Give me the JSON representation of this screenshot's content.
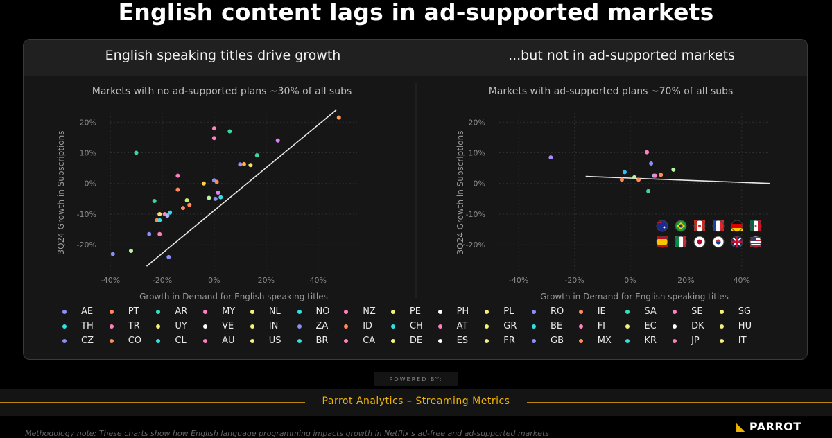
{
  "title": "English content lags in ad-supported markets",
  "panels": {
    "left_title": "English speaking titles drive growth",
    "right_title": "...but not in ad-supported markets"
  },
  "chart_data": [
    {
      "type": "scatter",
      "title": "Markets with no ad-supported plans ~30% of all subs",
      "xlabel": "Growth in Demand for English speaking titles",
      "ylabel": "3Q24 Growth in Subscriptions",
      "xlim": [
        -40,
        55
      ],
      "ylim": [
        -29,
        23
      ],
      "xticks": [
        "-40%",
        "-20%",
        "0%",
        "20%",
        "40%"
      ],
      "xtick_values": [
        -40,
        -20,
        0,
        20,
        40
      ],
      "yticks": [
        "20%",
        "10%",
        "0%",
        "-10%",
        "-20%"
      ],
      "ytick_values": [
        20,
        10,
        0,
        -10,
        -20
      ],
      "trendline": [
        [
          -26,
          -27
        ],
        [
          47,
          24
        ]
      ],
      "points": [
        {
          "x": -39,
          "y": -23,
          "color": "#8b8ff5"
        },
        {
          "x": -32,
          "y": -22,
          "color": "#b8f5a0"
        },
        {
          "x": -30,
          "y": 10,
          "color": "#3fd6a0"
        },
        {
          "x": -25,
          "y": -16.5,
          "color": "#8b8ff5"
        },
        {
          "x": -23,
          "y": -5.7,
          "color": "#3fd6a0"
        },
        {
          "x": -22,
          "y": -12,
          "color": "#ff8a5c"
        },
        {
          "x": -21,
          "y": -16.5,
          "color": "#ff7fbf"
        },
        {
          "x": -21,
          "y": -10,
          "color": "#ffe066"
        },
        {
          "x": -21,
          "y": -12,
          "color": "#33e0e0"
        },
        {
          "x": -19,
          "y": -10,
          "color": "#ff7fbf"
        },
        {
          "x": -18,
          "y": -10.5,
          "color": "#b0b0ff"
        },
        {
          "x": -17.5,
          "y": -24,
          "color": "#8b8ff5"
        },
        {
          "x": -17,
          "y": -9.5,
          "color": "#33e0e0"
        },
        {
          "x": -14,
          "y": 2.5,
          "color": "#ff7fbf"
        },
        {
          "x": -14,
          "y": -2,
          "color": "#ff8a5c"
        },
        {
          "x": -12,
          "y": -8,
          "color": "#ff8a5c"
        },
        {
          "x": -10.5,
          "y": -5.5,
          "color": "#c8f06a"
        },
        {
          "x": -9.5,
          "y": -7,
          "color": "#ff8a5c"
        },
        {
          "x": -4,
          "y": 0,
          "color": "#ffd24a"
        },
        {
          "x": -2,
          "y": -4.7,
          "color": "#b8f5a0"
        },
        {
          "x": 0,
          "y": 1,
          "color": "#8b8ff5"
        },
        {
          "x": 0,
          "y": 18,
          "color": "#ff7fbf"
        },
        {
          "x": 0,
          "y": 14.8,
          "color": "#ff7fbf"
        },
        {
          "x": 0.5,
          "y": -5,
          "color": "#8b8ff5"
        },
        {
          "x": 1,
          "y": 0.5,
          "color": "#ff8a5c"
        },
        {
          "x": 1.5,
          "y": -3,
          "color": "#e07fff"
        },
        {
          "x": 2.5,
          "y": -4.5,
          "color": "#33e0e0"
        },
        {
          "x": 6,
          "y": 17,
          "color": "#3fd6a0"
        },
        {
          "x": 10,
          "y": 6.2,
          "color": "#a88bff"
        },
        {
          "x": 11.5,
          "y": 6.3,
          "color": "#ffb347"
        },
        {
          "x": 14,
          "y": 6,
          "color": "#ffe066"
        },
        {
          "x": 16.5,
          "y": 9.2,
          "color": "#3fd6a0"
        },
        {
          "x": 24.5,
          "y": 14,
          "color": "#e07fff"
        },
        {
          "x": 48,
          "y": 21.5,
          "color": "#ff9a50"
        }
      ]
    },
    {
      "type": "scatter",
      "title": "Markets with ad-supported plans ~70% of all subs",
      "xlabel": "Growth in Demand for English speaking titles",
      "ylabel": "3Q24 Growth in Subscriptions",
      "xlim": [
        -47,
        50
      ],
      "ylim": [
        -29,
        23
      ],
      "xticks": [
        "-40%",
        "-20%",
        "0%",
        "20%",
        "40%"
      ],
      "xtick_values": [
        -40,
        -20,
        0,
        20,
        40
      ],
      "yticks": [
        "20%",
        "10%",
        "0%",
        "-10%",
        "-20%"
      ],
      "ytick_values": [
        20,
        10,
        0,
        -10,
        -20
      ],
      "trendline": [
        [
          -16,
          2.3
        ],
        [
          50,
          0
        ]
      ],
      "points": [
        {
          "x": -28.5,
          "y": 8.5,
          "color": "#a88bff"
        },
        {
          "x": -3,
          "y": 1.2,
          "color": "#ff8a5c"
        },
        {
          "x": -2,
          "y": 3.7,
          "color": "#33c0f0"
        },
        {
          "x": 1.5,
          "y": 2,
          "color": "#b8f5a0"
        },
        {
          "x": 3,
          "y": 1.2,
          "color": "#ff8a5c"
        },
        {
          "x": 6,
          "y": 10.2,
          "color": "#ff7fbf"
        },
        {
          "x": 6.5,
          "y": -2.5,
          "color": "#3fd6a0"
        },
        {
          "x": 7.5,
          "y": 6.5,
          "color": "#8b8ff5"
        },
        {
          "x": 8.5,
          "y": 2.5,
          "color": "#b0b0ff"
        },
        {
          "x": 9,
          "y": 2.5,
          "color": "#ff7fbf"
        },
        {
          "x": 11,
          "y": 2.8,
          "color": "#ff8a5c"
        },
        {
          "x": 15.5,
          "y": 4.5,
          "color": "#b8f5a0"
        }
      ]
    }
  ],
  "flags": [
    "australia-flag",
    "brazil-flag",
    "canada-flag",
    "france-flag",
    "germany-flag",
    "mexico-flag",
    "spain-flag",
    "italy-flag",
    "japan-flag",
    "south-korea-flag",
    "uk-flag",
    "us-flag"
  ],
  "legend": [
    {
      "label": "AE",
      "color": "#8b8ff5"
    },
    {
      "label": "PT",
      "color": "#ff8a5c"
    },
    {
      "label": "AR",
      "color": "#33e0c0"
    },
    {
      "label": "MY",
      "color": "#ff7fbf"
    },
    {
      "label": "NL",
      "color": "#f5f07a"
    },
    {
      "label": "NO",
      "color": "#33e0e0"
    },
    {
      "label": "NZ",
      "color": "#ff7fbf"
    },
    {
      "label": "PE",
      "color": "#f5f07a"
    },
    {
      "label": "PH",
      "color": "#ffffff"
    },
    {
      "label": "PL",
      "color": "#f5f07a"
    },
    {
      "label": "RO",
      "color": "#8b8ff5"
    },
    {
      "label": "IE",
      "color": "#ff8a5c"
    },
    {
      "label": "SA",
      "color": "#33e0c0"
    },
    {
      "label": "SE",
      "color": "#ff7fbf"
    },
    {
      "label": "SG",
      "color": "#f5f07a"
    },
    {
      "label": "TH",
      "color": "#33e0e0"
    },
    {
      "label": "TR",
      "color": "#ff7fbf"
    },
    {
      "label": "UY",
      "color": "#f5f07a"
    },
    {
      "label": "VE",
      "color": "#ffffff"
    },
    {
      "label": "IN",
      "color": "#f5f07a"
    },
    {
      "label": "ZA",
      "color": "#8b8ff5"
    },
    {
      "label": "ID",
      "color": "#ff8a5c"
    },
    {
      "label": "CH",
      "color": "#33e0e0"
    },
    {
      "label": "AT",
      "color": "#ff7fbf"
    },
    {
      "label": "GR",
      "color": "#f5f07a"
    },
    {
      "label": "BE",
      "color": "#33e0e0"
    },
    {
      "label": "FI",
      "color": "#ff7fbf"
    },
    {
      "label": "EC",
      "color": "#f5f07a"
    },
    {
      "label": "DK",
      "color": "#ffffff"
    },
    {
      "label": "HU",
      "color": "#f5f07a"
    },
    {
      "label": "CZ",
      "color": "#8b8ff5"
    },
    {
      "label": "CO",
      "color": "#ff8a5c"
    },
    {
      "label": "CL",
      "color": "#33e0e0"
    },
    {
      "label": "AU",
      "color": "#ff7fbf"
    },
    {
      "label": "US",
      "color": "#f5f07a"
    },
    {
      "label": "BR",
      "color": "#33e0e0"
    },
    {
      "label": "CA",
      "color": "#ff7fbf"
    },
    {
      "label": "DE",
      "color": "#f5f07a"
    },
    {
      "label": "ES",
      "color": "#ffffff"
    },
    {
      "label": "FR",
      "color": "#f5f07a"
    },
    {
      "label": "GB",
      "color": "#8b8ff5"
    },
    {
      "label": "MX",
      "color": "#ff8a5c"
    },
    {
      "label": "KR",
      "color": "#33e0e0"
    },
    {
      "label": "JP",
      "color": "#ff7fbf"
    },
    {
      "label": "IT",
      "color": "#f5f07a"
    }
  ],
  "powered_by": "POWERED BY:",
  "footer": {
    "text": "Parrot Analytics –  Streaming Metrics",
    "accent": "#f0b400"
  },
  "methodology": "Methodology note: These charts show how English language programming impacts growth in Netflix's ad-free and ad-supported markets",
  "brand": "PARROT"
}
